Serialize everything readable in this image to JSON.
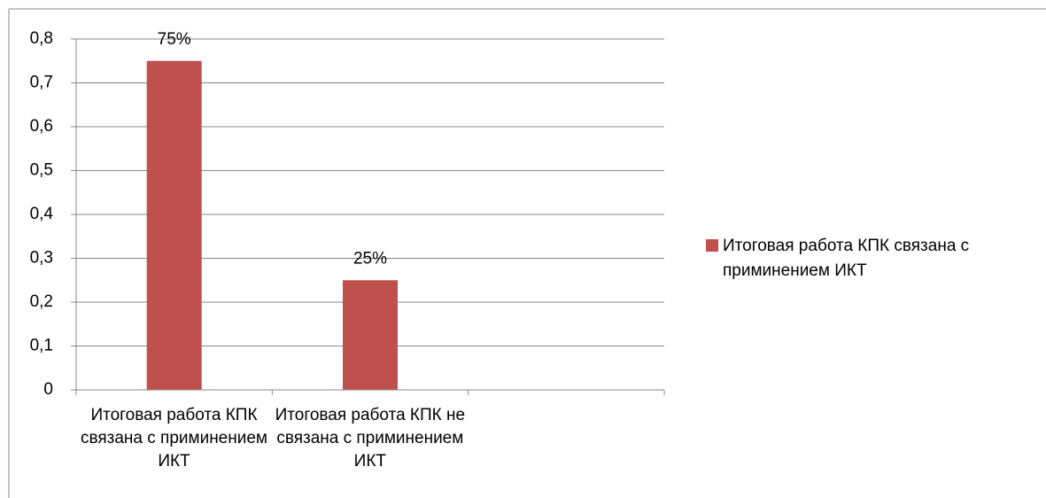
{
  "chart_data": {
    "type": "bar",
    "categories": [
      "Итоговая работа КПК связана с приминением ИКТ",
      "Итоговая работа КПК  не связана с приминением ИКТ",
      null
    ],
    "series": [
      {
        "name": "Итоговая работа КПК связана с приминением ИКТ",
        "color": "#c0504d",
        "values": [
          0.75,
          0.25,
          null
        ],
        "value_labels": [
          "75%",
          "25%",
          null
        ]
      }
    ],
    "ylim": [
      0,
      0.8
    ],
    "yticks": [
      0,
      {
        "value": 0.1,
        "label": "0,1"
      },
      {
        "value": 0.2,
        "label": "0,2"
      },
      {
        "value": 0.3,
        "label": "0,3"
      },
      {
        "value": 0.4,
        "label": "0,4"
      },
      {
        "value": 0.5,
        "label": "0,5"
      },
      {
        "value": 0.6,
        "label": "0,6"
      },
      {
        "value": 0.7,
        "label": "0,7"
      },
      {
        "value": 0.8,
        "label": "0,8"
      }
    ],
    "grid": true,
    "legend": "right"
  }
}
